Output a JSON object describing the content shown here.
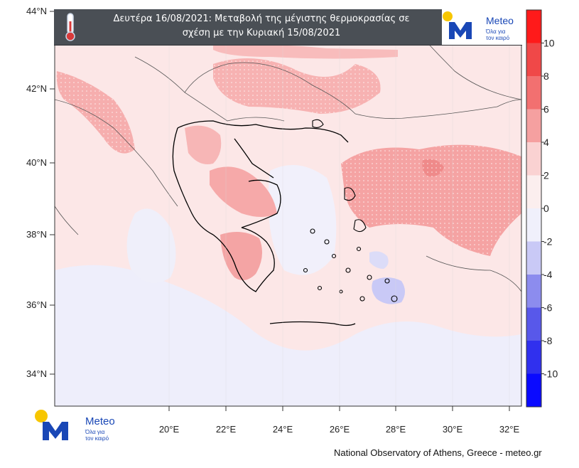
{
  "title": {
    "line1": "Δευτέρα 16/08/2021: Μεταβολή της μέγιστης θερμοκρασίας σε",
    "line2": "σχέση με την Κυριακή 15/08/2021"
  },
  "brand": {
    "name": "Meteo",
    "tagline_line1": "Όλα για",
    "tagline_line2": "τον καιρό",
    "accent_yellow": "#f7c600",
    "accent_blue": "#1947b6"
  },
  "axes": {
    "lat_labels": [
      "44°N",
      "42°N",
      "40°N",
      "38°N",
      "36°N",
      "34°N"
    ],
    "lon_labels": [
      "20°E",
      "22°E",
      "24°E",
      "26°E",
      "28°E",
      "30°E",
      "32°E"
    ]
  },
  "colorbar": {
    "labels": [
      "10",
      "8",
      "6",
      "4",
      "2",
      "0",
      "-2",
      "-4",
      "-6",
      "-8",
      "-10"
    ],
    "colors": [
      "#ff1a1a",
      "#f04848",
      "#f27070",
      "#f5a0a0",
      "#fad2d2",
      "#fbeeee",
      "#f0f0fb",
      "#c9c9f6",
      "#8c8cee",
      "#5858ea",
      "#3030ee",
      "#0a0aff"
    ]
  },
  "footer": {
    "credit": "National Observatory of Athens, Greece - meteo.gr"
  }
}
